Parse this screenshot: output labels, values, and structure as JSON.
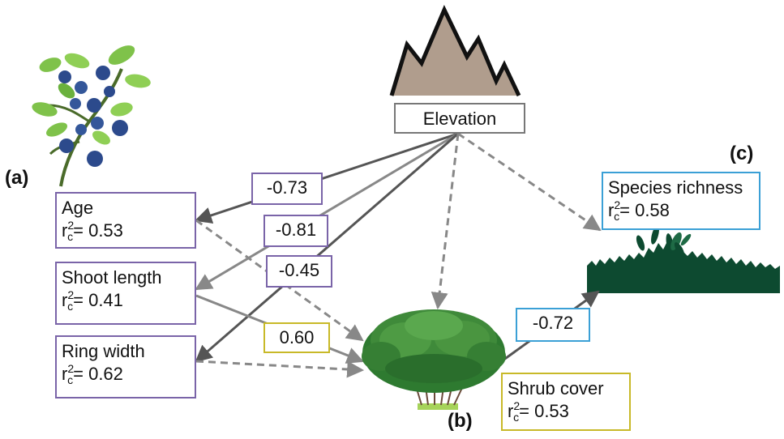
{
  "panels": {
    "a": "(a)",
    "b": "(b)",
    "c": "(c)"
  },
  "nodes": {
    "elevation": {
      "label": "Elevation"
    },
    "age": {
      "label": "Age",
      "r": "r",
      "sup": "2",
      "sub": "c",
      "value": "= 0.53"
    },
    "shoot_length": {
      "label": "Shoot length",
      "r": "r",
      "sup": "2",
      "sub": "c",
      "value": "= 0.41"
    },
    "ring_width": {
      "label": "Ring width",
      "r": "r",
      "sup": "2",
      "sub": "c",
      "value": "= 0.62"
    },
    "shrub_cover": {
      "label": "Shrub cover",
      "r": "r",
      "sup": "2",
      "sub": "c",
      "value": "= 0.53"
    },
    "species_richness": {
      "label": "Species richness",
      "r": "r",
      "sup": "2",
      "sub": "c",
      "value": "= 0.58"
    }
  },
  "coefficients": {
    "elev_age": "-0.73",
    "elev_shoot": "-0.81",
    "elev_ring": "-0.45",
    "shoot_shrub": "0.60",
    "shrub_richness": "-0.72"
  },
  "colors": {
    "purple_box": "#7a64a8",
    "olive_box": "#c8b928",
    "blue_box": "#3ba0d6",
    "mountain": "#b09d8d",
    "grass": "#0d4a30",
    "shrub": "#3f8a3a",
    "berry": "#2c4a8c",
    "leaf": "#7fc24a"
  },
  "icons": [
    "mountain-icon",
    "blueberry-plant-icon",
    "shrub-icon",
    "grass-icon"
  ]
}
